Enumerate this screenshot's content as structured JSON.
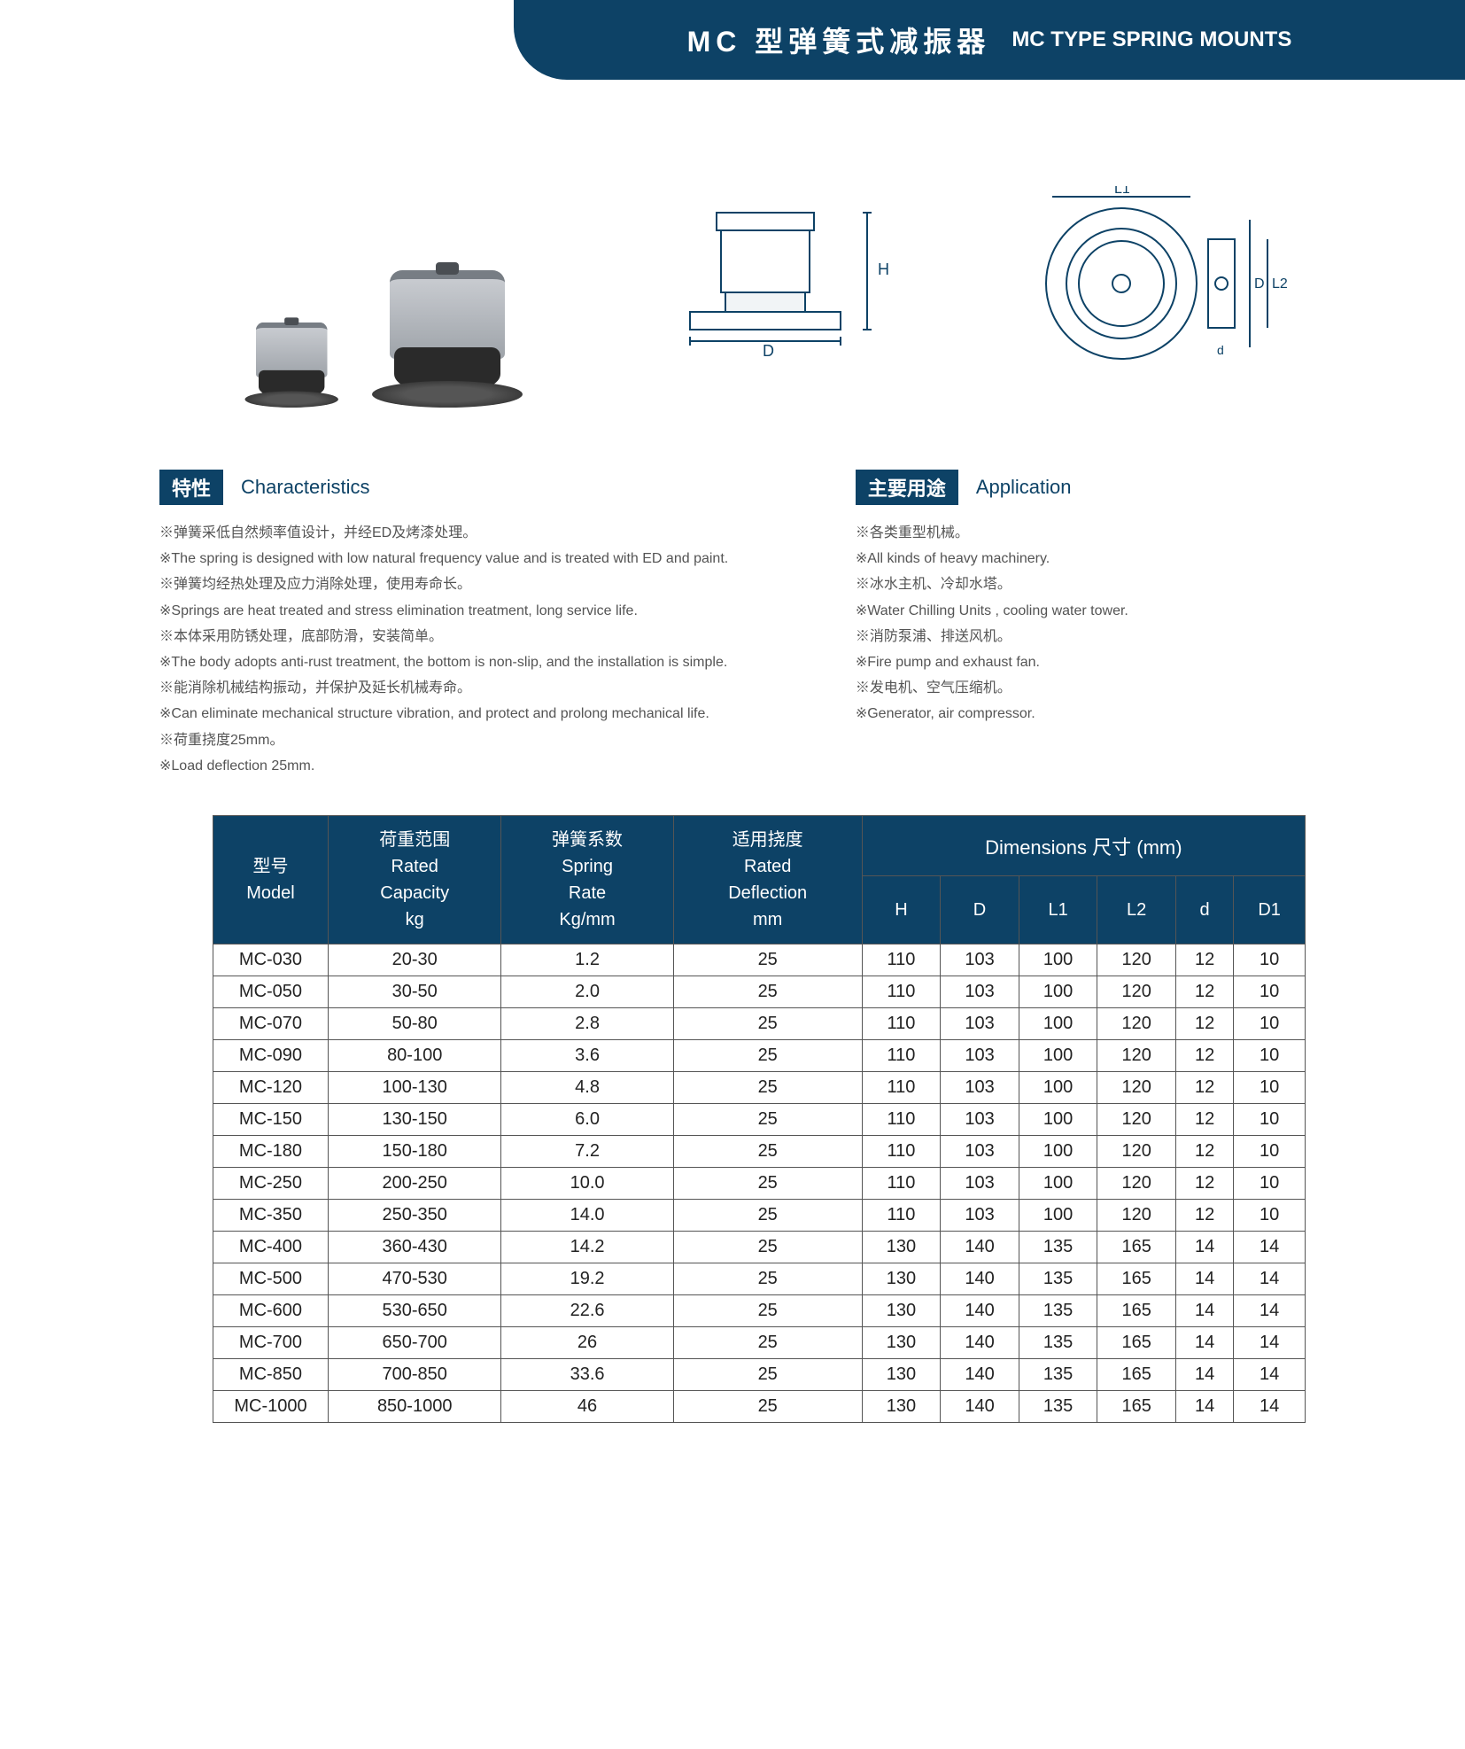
{
  "header": {
    "cn": "MC 型弹簧式减振器",
    "en": "MC TYPE SPRING MOUNTS"
  },
  "drawing_labels": {
    "H": "H",
    "D": "D",
    "L1": "L1",
    "L2": "L2",
    "d": "d"
  },
  "characteristics": {
    "badge": "特性",
    "label": "Characteristics",
    "items": [
      "※弹簧采低自然频率值设计，并经ED及烤漆处理。",
      "※The spring is designed with low natural frequency value and is treated with ED and paint.",
      "※弹簧均经热处理及应力消除处理，使用寿命长。",
      "※Springs are heat treated and stress elimination treatment, long service life.",
      "※本体采用防锈处理，底部防滑，安装简单。",
      "※The body adopts anti-rust treatment, the bottom is non-slip, and the installation is simple.",
      "※能消除机械结构振动，并保护及延长机械寿命。",
      "※Can eliminate mechanical structure vibration, and protect and prolong mechanical life.",
      "※荷重挠度25mm。",
      "※Load deflection 25mm."
    ]
  },
  "application": {
    "badge": "主要用途",
    "label": "Application",
    "items": [
      "※各类重型机械。",
      "※All kinds of heavy machinery.",
      "※冰水主机、冷却水塔。",
      "※Water Chilling Units , cooling water tower.",
      "※消防泵浦、排送风机。",
      "※Fire pump and exhaust fan.",
      "※发电机、空气压缩机。",
      "※Generator, air compressor."
    ]
  },
  "table": {
    "dimensions_group": "Dimensions 尺寸 (mm)",
    "headers": {
      "model": "型号\nModel",
      "capacity": "荷重范围\nRated\nCapacity\nkg",
      "rate": "弹簧系数\nSpring\nRate\nKg/mm",
      "deflection": "适用挠度\nRated\nDeflection\nmm",
      "H": "H",
      "D": "D",
      "L1": "L1",
      "L2": "L2",
      "d": "d",
      "D1": "D1"
    },
    "rows": [
      [
        "MC-030",
        "20-30",
        "1.2",
        "25",
        "110",
        "103",
        "100",
        "120",
        "12",
        "10"
      ],
      [
        "MC-050",
        "30-50",
        "2.0",
        "25",
        "110",
        "103",
        "100",
        "120",
        "12",
        "10"
      ],
      [
        "MC-070",
        "50-80",
        "2.8",
        "25",
        "110",
        "103",
        "100",
        "120",
        "12",
        "10"
      ],
      [
        "MC-090",
        "80-100",
        "3.6",
        "25",
        "110",
        "103",
        "100",
        "120",
        "12",
        "10"
      ],
      [
        "MC-120",
        "100-130",
        "4.8",
        "25",
        "110",
        "103",
        "100",
        "120",
        "12",
        "10"
      ],
      [
        "MC-150",
        "130-150",
        "6.0",
        "25",
        "110",
        "103",
        "100",
        "120",
        "12",
        "10"
      ],
      [
        "MC-180",
        "150-180",
        "7.2",
        "25",
        "110",
        "103",
        "100",
        "120",
        "12",
        "10"
      ],
      [
        "MC-250",
        "200-250",
        "10.0",
        "25",
        "110",
        "103",
        "100",
        "120",
        "12",
        "10"
      ],
      [
        "MC-350",
        "250-350",
        "14.0",
        "25",
        "110",
        "103",
        "100",
        "120",
        "12",
        "10"
      ],
      [
        "MC-400",
        "360-430",
        "14.2",
        "25",
        "130",
        "140",
        "135",
        "165",
        "14",
        "14"
      ],
      [
        "MC-500",
        "470-530",
        "19.2",
        "25",
        "130",
        "140",
        "135",
        "165",
        "14",
        "14"
      ],
      [
        "MC-600",
        "530-650",
        "22.6",
        "25",
        "130",
        "140",
        "135",
        "165",
        "14",
        "14"
      ],
      [
        "MC-700",
        "650-700",
        "26",
        "25",
        "130",
        "140",
        "135",
        "165",
        "14",
        "14"
      ],
      [
        "MC-850",
        "700-850",
        "33.6",
        "25",
        "130",
        "140",
        "135",
        "165",
        "14",
        "14"
      ],
      [
        "MC-1000",
        "850-1000",
        "46",
        "25",
        "130",
        "140",
        "135",
        "165",
        "14",
        "14"
      ]
    ]
  },
  "colors": {
    "brand": "#0d4266",
    "text": "#545454",
    "border": "#555555"
  }
}
